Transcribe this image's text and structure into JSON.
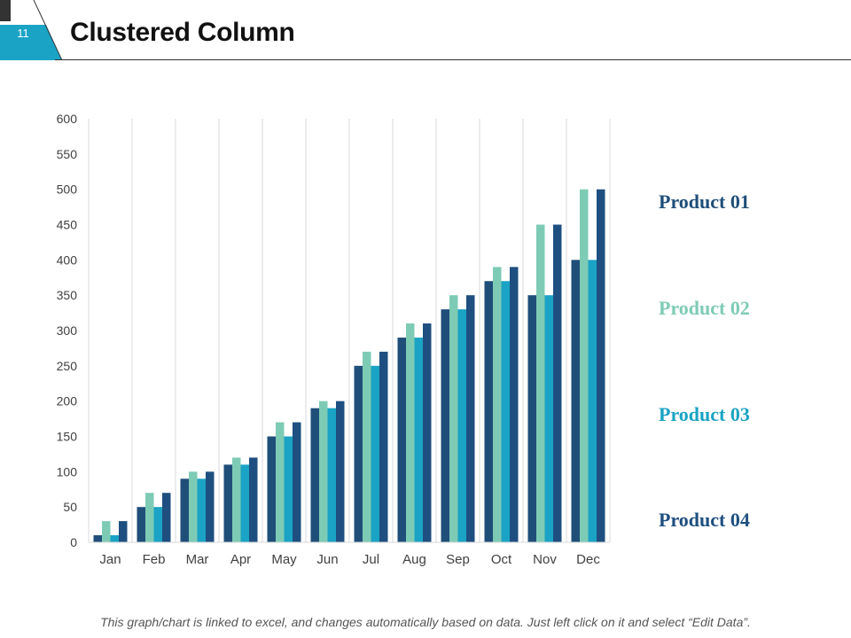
{
  "slide": {
    "number": "11",
    "title": "Clustered Column",
    "footer": "This graph/chart is linked to excel, and changes automatically based on data. Just left click on it and select “Edit Data”."
  },
  "colors": {
    "badge": "#1ba3c6",
    "product01": "#1f4e79",
    "product02": "#7ecbb5",
    "product03": "#1aa3c4",
    "product04": "#1e4f80"
  },
  "chart_data": {
    "type": "bar",
    "categories": [
      "Jan",
      "Feb",
      "Mar",
      "Apr",
      "May",
      "Jun",
      "Jul",
      "Aug",
      "Sep",
      "Oct",
      "Nov",
      "Dec"
    ],
    "series": [
      {
        "name": "Product 01",
        "values": [
          10,
          50,
          90,
          110,
          150,
          190,
          250,
          290,
          330,
          370,
          350,
          400
        ]
      },
      {
        "name": "Product 02",
        "values": [
          30,
          70,
          100,
          120,
          170,
          200,
          270,
          310,
          350,
          390,
          450,
          500
        ]
      },
      {
        "name": "Product 03",
        "values": [
          10,
          50,
          90,
          110,
          150,
          190,
          250,
          290,
          330,
          370,
          350,
          400
        ]
      },
      {
        "name": "Product 04",
        "values": [
          30,
          70,
          100,
          120,
          170,
          200,
          270,
          310,
          350,
          390,
          450,
          500
        ]
      }
    ],
    "yticks": [
      "0",
      "50",
      "100",
      "150",
      "200",
      "250",
      "300",
      "350",
      "400",
      "450",
      "500",
      "550",
      "600"
    ],
    "ylim": [
      0,
      600
    ],
    "grid": "vertical",
    "legend_position": "right"
  }
}
